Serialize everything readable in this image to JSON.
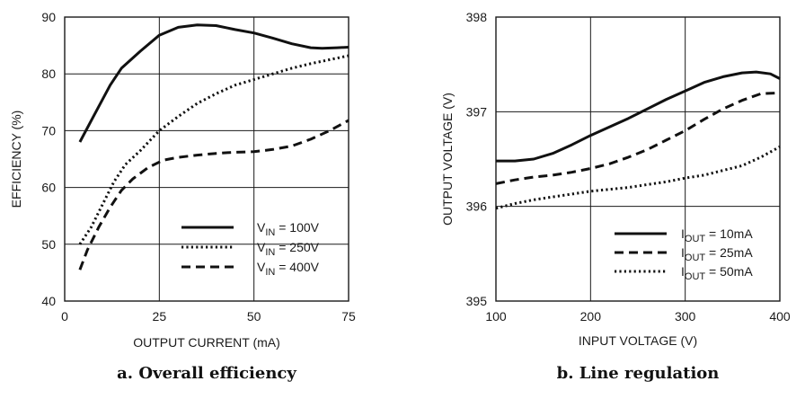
{
  "chart_data": [
    {
      "type": "line",
      "caption": "a. Overall efficiency",
      "xlabel": "OUTPUT CURRENT (mA)",
      "ylabel": "EFFICIENCY (%)",
      "xlim": [
        0,
        75
      ],
      "ylim": [
        40,
        90
      ],
      "xticks": [
        0,
        25,
        50,
        75
      ],
      "yticks": [
        40,
        50,
        60,
        70,
        80,
        90
      ],
      "grid": true,
      "legend_position": "bottom-right",
      "series": [
        {
          "label_main": "V",
          "label_sub": "IN",
          "label_tail": " = 100V",
          "style": "solid",
          "points": [
            [
              4,
              68
            ],
            [
              8,
              73
            ],
            [
              12,
              78
            ],
            [
              15,
              81
            ],
            [
              20,
              84
            ],
            [
              25,
              86.8
            ],
            [
              30,
              88.2
            ],
            [
              35,
              88.6
            ],
            [
              40,
              88.5
            ],
            [
              45,
              87.8
            ],
            [
              50,
              87.2
            ],
            [
              55,
              86.3
            ],
            [
              60,
              85.3
            ],
            [
              65,
              84.6
            ],
            [
              68,
              84.5
            ],
            [
              72,
              84.6
            ],
            [
              75,
              84.7
            ]
          ]
        },
        {
          "label_main": "V",
          "label_sub": "IN",
          "label_tail": " = 250V",
          "style": "dotted",
          "points": [
            [
              4,
              50
            ],
            [
              7,
              53
            ],
            [
              10,
              57
            ],
            [
              13,
              61
            ],
            [
              16,
              64
            ],
            [
              20,
              66.5
            ],
            [
              25,
              70
            ],
            [
              30,
              72.5
            ],
            [
              35,
              74.8
            ],
            [
              40,
              76.5
            ],
            [
              45,
              78
            ],
            [
              50,
              79
            ],
            [
              55,
              80
            ],
            [
              60,
              81
            ],
            [
              65,
              81.8
            ],
            [
              70,
              82.5
            ],
            [
              75,
              83.2
            ]
          ]
        },
        {
          "label_main": "V",
          "label_sub": "IN",
          "label_tail": " = 400V",
          "style": "dashed",
          "points": [
            [
              4,
              45.5
            ],
            [
              6,
              49
            ],
            [
              9,
              53
            ],
            [
              12,
              56.5
            ],
            [
              15,
              59.5
            ],
            [
              18,
              61.5
            ],
            [
              22,
              63.5
            ],
            [
              26,
              64.8
            ],
            [
              30,
              65.3
            ],
            [
              35,
              65.7
            ],
            [
              40,
              66
            ],
            [
              45,
              66.2
            ],
            [
              50,
              66.3
            ],
            [
              55,
              66.7
            ],
            [
              60,
              67.3
            ],
            [
              65,
              68.5
            ],
            [
              70,
              70
            ],
            [
              75,
              71.8
            ]
          ]
        }
      ]
    },
    {
      "type": "line",
      "caption": "b. Line regulation",
      "xlabel": "INPUT VOLTAGE (V)",
      "ylabel": "OUTPUT VOLTAGE (V)",
      "xlim": [
        100,
        400
      ],
      "ylim": [
        395,
        398
      ],
      "xticks": [
        100,
        200,
        300,
        400
      ],
      "yticks": [
        395,
        396,
        397,
        398
      ],
      "grid": true,
      "legend_position": "bottom-right",
      "series": [
        {
          "label_main": "I",
          "label_sub": "OUT",
          "label_tail": " = 10mA",
          "style": "solid",
          "points": [
            [
              100,
              396.48
            ],
            [
              120,
              396.48
            ],
            [
              140,
              396.5
            ],
            [
              160,
              396.56
            ],
            [
              180,
              396.65
            ],
            [
              200,
              396.75
            ],
            [
              220,
              396.84
            ],
            [
              240,
              396.93
            ],
            [
              260,
              397.03
            ],
            [
              280,
              397.13
            ],
            [
              300,
              397.22
            ],
            [
              320,
              397.31
            ],
            [
              340,
              397.37
            ],
            [
              360,
              397.41
            ],
            [
              375,
              397.42
            ],
            [
              390,
              397.4
            ],
            [
              400,
              397.35
            ]
          ]
        },
        {
          "label_main": "I",
          "label_sub": "OUT",
          "label_tail": " = 25mA",
          "style": "dashed",
          "points": [
            [
              100,
              396.24
            ],
            [
              120,
              396.28
            ],
            [
              140,
              396.31
            ],
            [
              160,
              396.33
            ],
            [
              180,
              396.36
            ],
            [
              200,
              396.4
            ],
            [
              220,
              396.45
            ],
            [
              240,
              396.52
            ],
            [
              260,
              396.6
            ],
            [
              280,
              396.7
            ],
            [
              300,
              396.8
            ],
            [
              320,
              396.92
            ],
            [
              340,
              397.03
            ],
            [
              360,
              397.12
            ],
            [
              380,
              397.19
            ],
            [
              400,
              397.2
            ]
          ]
        },
        {
          "label_main": "I",
          "label_sub": "OUT",
          "label_tail": " = 50mA",
          "style": "dotted",
          "points": [
            [
              100,
              395.98
            ],
            [
              120,
              396.03
            ],
            [
              140,
              396.07
            ],
            [
              160,
              396.1
            ],
            [
              180,
              396.13
            ],
            [
              200,
              396.16
            ],
            [
              220,
              396.18
            ],
            [
              240,
              396.2
            ],
            [
              260,
              396.23
            ],
            [
              280,
              396.26
            ],
            [
              300,
              396.3
            ],
            [
              320,
              396.33
            ],
            [
              340,
              396.38
            ],
            [
              360,
              396.43
            ],
            [
              380,
              396.52
            ],
            [
              400,
              396.63
            ]
          ]
        }
      ]
    }
  ]
}
